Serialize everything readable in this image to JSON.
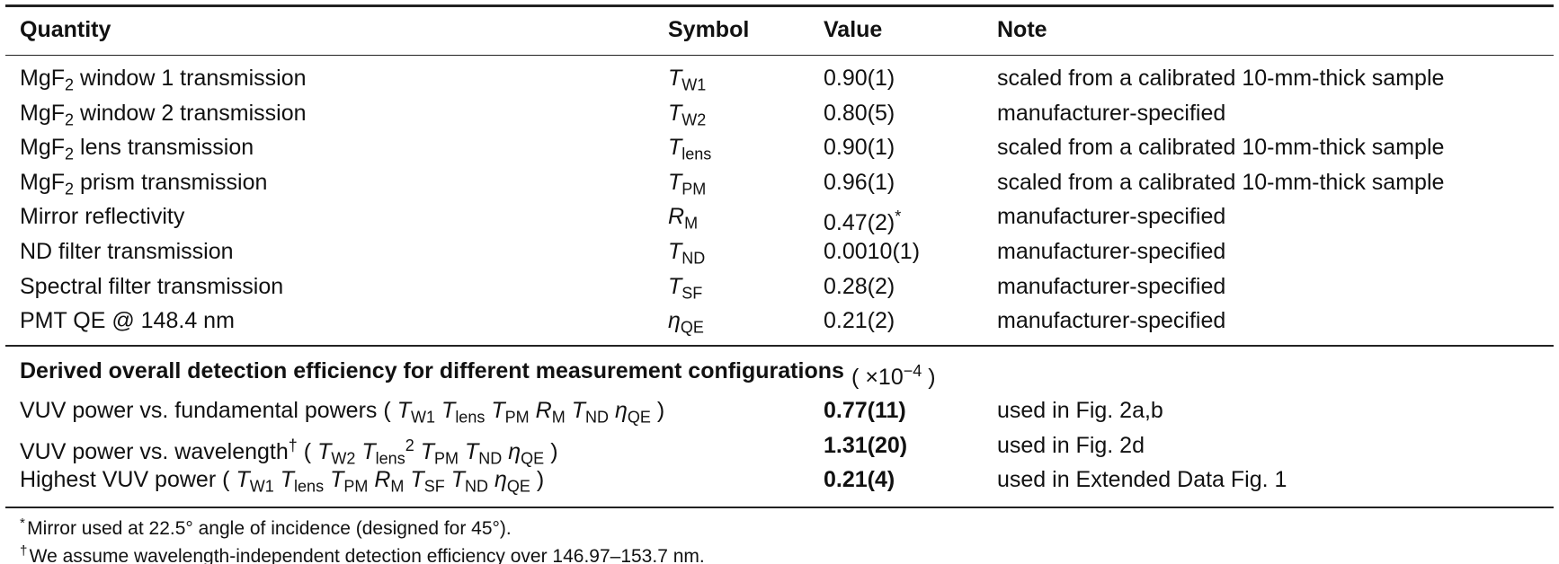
{
  "table": {
    "columns": [
      [
        {
          "text": "Quantity"
        }
      ],
      [
        {
          "text": "Symbol"
        }
      ],
      [
        {
          "text": "Value"
        }
      ],
      [
        {
          "text": "Note"
        }
      ]
    ],
    "rows": [
      {
        "quantity": [
          {
            "text": "MgF",
            "sub": "2"
          },
          {
            "text": "window 1 transmission"
          }
        ],
        "symbol": [
          {
            "text": "T",
            "sub": "W1"
          }
        ],
        "value": [
          {
            "text": "0.90(1)"
          }
        ],
        "note": [
          {
            "text": "scaled from a calibrated 10-mm-thick sample"
          }
        ]
      },
      {
        "quantity": [
          {
            "text": "MgF",
            "sub": "2"
          },
          {
            "text": "window 2 transmission"
          }
        ],
        "symbol": [
          {
            "text": "T",
            "sub": "W2"
          }
        ],
        "value": [
          {
            "text": "0.80(5)"
          }
        ],
        "note": [
          {
            "text": "manufacturer-specified"
          }
        ]
      },
      {
        "quantity": [
          {
            "text": "MgF",
            "sub": "2"
          },
          {
            "text": "lens transmission"
          }
        ],
        "symbol": [
          {
            "text": "T",
            "sub": "lens"
          }
        ],
        "value": [
          {
            "text": "0.90(1)"
          }
        ],
        "note": [
          {
            "text": "scaled from a calibrated 10-mm-thick sample"
          }
        ]
      },
      {
        "quantity": [
          {
            "text": "MgF",
            "sub": "2"
          },
          {
            "text": "prism transmission"
          }
        ],
        "symbol": [
          {
            "text": "T",
            "sub": "PM"
          }
        ],
        "value": [
          {
            "text": "0.96(1)"
          }
        ],
        "note": [
          {
            "text": "scaled from a calibrated 10-mm-thick sample"
          }
        ]
      },
      {
        "quantity": [
          {
            "text": "Mirror reflectivity"
          }
        ],
        "symbol": [
          {
            "text": "R",
            "sub": "M"
          }
        ],
        "value": [
          {
            "text": "0.47(2)",
            "sup": "*"
          }
        ],
        "note": [
          {
            "text": "manufacturer-specified"
          }
        ]
      },
      {
        "quantity": [
          {
            "text": "ND filter transmission"
          }
        ],
        "symbol": [
          {
            "text": "T",
            "sub": "ND"
          }
        ],
        "value": [
          {
            "text": "0.0010(1)"
          }
        ],
        "note": [
          {
            "text": "manufacturer-specified"
          }
        ]
      },
      {
        "quantity": [
          {
            "text": "Spectral filter transmission"
          }
        ],
        "symbol": [
          {
            "text": "T",
            "sub": "SF"
          }
        ],
        "value": [
          {
            "text": "0.28(2)"
          }
        ],
        "note": [
          {
            "text": "manufacturer-specified"
          }
        ]
      },
      {
        "quantity": [
          {
            "text": "PMT QE @ 148.4 nm"
          }
        ],
        "symbol": [
          {
            "text": "η",
            "sub": "QE"
          }
        ],
        "value": [
          {
            "text": "0.21(2)"
          }
        ],
        "note": [
          {
            "text": "manufacturer-specified"
          }
        ]
      }
    ],
    "derived_title": [
      {
        "text": "Derived overall detection efficiency for different measurement configurations"
      }
    ],
    "derived_unit": [
      {
        "text": "("
      },
      {
        "text": "×10",
        "sup": "−4"
      },
      {
        "text": ")"
      }
    ],
    "derived_rows": [
      {
        "quantity": [
          {
            "text": "VUV power vs. fundamental powers"
          },
          {
            "text": "("
          },
          {
            "text": "T",
            "sub": "W1"
          },
          {
            "text": "T",
            "sub": "lens"
          },
          {
            "text": "T",
            "sub": "PM"
          },
          {
            "text": "R",
            "sub": "M"
          },
          {
            "text": "T",
            "sub": "ND"
          },
          {
            "text": "η",
            "sub": "QE"
          },
          {
            "text": ")"
          }
        ],
        "value": [
          {
            "text": "0.77(11)"
          }
        ],
        "note": [
          {
            "text": "used in Fig. 2a,b"
          }
        ]
      },
      {
        "quantity": [
          {
            "text": "VUV power vs. wavelength",
            "sup": "†"
          },
          {
            "text": "("
          },
          {
            "text": "T",
            "sub": "W2"
          },
          {
            "text": "T",
            "sub": "lens",
            "sup": "2"
          },
          {
            "text": "T",
            "sub": "PM"
          },
          {
            "text": "T",
            "sub": "ND"
          },
          {
            "text": "η",
            "sub": "QE"
          },
          {
            "text": ")"
          }
        ],
        "value": [
          {
            "text": "1.31(20)"
          }
        ],
        "note": [
          {
            "text": "used in Fig. 2d"
          }
        ]
      },
      {
        "quantity": [
          {
            "text": "Highest VUV power"
          },
          {
            "text": "("
          },
          {
            "text": "T",
            "sub": "W1"
          },
          {
            "text": "T",
            "sub": "lens"
          },
          {
            "text": "T",
            "sub": "PM"
          },
          {
            "text": "R",
            "sub": "M"
          },
          {
            "text": "T",
            "sub": "SF"
          },
          {
            "text": "T",
            "sub": "ND"
          },
          {
            "text": "η",
            "sub": "QE"
          },
          {
            "text": ")"
          }
        ],
        "value": [
          {
            "text": "0.21(4)"
          }
        ],
        "note": [
          {
            "text": "used in Extended Data Fig. 1"
          }
        ]
      }
    ],
    "footnotes": [
      [
        {
          "pre": "*",
          "text": "Mirror used at 22.5° angle of incidence (designed for 45°)."
        }
      ],
      [
        {
          "pre": "†",
          "text": "We assume wavelength-independent detection efficiency over 146.97–153.7 nm."
        }
      ]
    ]
  }
}
